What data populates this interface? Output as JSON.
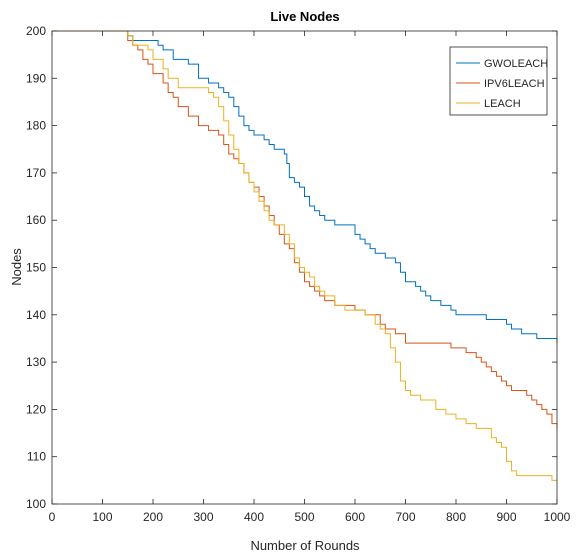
{
  "chart_data": {
    "type": "line",
    "title": "Live Nodes",
    "xlabel": "Number of Rounds",
    "ylabel": "Nodes",
    "xlim": [
      0,
      1000
    ],
    "ylim": [
      100,
      200
    ],
    "xticks": [
      0,
      100,
      200,
      300,
      400,
      500,
      600,
      700,
      800,
      900,
      1000
    ],
    "yticks": [
      100,
      110,
      120,
      130,
      140,
      150,
      160,
      170,
      180,
      190,
      200
    ],
    "grid": false,
    "legend_position": "top-right",
    "series": [
      {
        "name": "GWOLEACH",
        "color": "#0072BD",
        "x": [
          0,
          140,
          150,
          160,
          200,
          210,
          220,
          240,
          270,
          290,
          310,
          330,
          340,
          350,
          360,
          370,
          380,
          390,
          400,
          410,
          420,
          430,
          440,
          460,
          465,
          470,
          480,
          490,
          500,
          510,
          520,
          530,
          540,
          560,
          600,
          610,
          620,
          630,
          640,
          660,
          680,
          690,
          700,
          720,
          730,
          740,
          750,
          770,
          790,
          800,
          820,
          860,
          880,
          900,
          910,
          920,
          930,
          960,
          990,
          1000
        ],
        "y": [
          200,
          200,
          199,
          198,
          198,
          197,
          196,
          194,
          193,
          190,
          189,
          188,
          187,
          186,
          184,
          182,
          180,
          179,
          178,
          178,
          177,
          176,
          175,
          174,
          172,
          169,
          168,
          167,
          165,
          163,
          162,
          161,
          160,
          159,
          157,
          156,
          155,
          154,
          153,
          152,
          151,
          149,
          147,
          146,
          145,
          144,
          143,
          142,
          141,
          140,
          140,
          139,
          139,
          138,
          137,
          137,
          136,
          135,
          135,
          134
        ]
      },
      {
        "name": "IPV6LEACH",
        "color": "#D95319",
        "x": [
          0,
          140,
          150,
          160,
          170,
          180,
          190,
          200,
          220,
          230,
          240,
          250,
          270,
          290,
          310,
          330,
          340,
          350,
          360,
          370,
          380,
          390,
          400,
          410,
          420,
          430,
          440,
          450,
          460,
          470,
          480,
          490,
          500,
          510,
          520,
          530,
          540,
          560,
          600,
          620,
          650,
          660,
          680,
          700,
          740,
          790,
          820,
          830,
          840,
          850,
          860,
          870,
          880,
          890,
          900,
          910,
          920,
          940,
          950,
          960,
          970,
          980,
          990,
          1000
        ],
        "y": [
          200,
          200,
          198,
          197,
          196,
          194,
          193,
          191,
          189,
          187,
          186,
          184,
          182,
          180,
          179,
          178,
          176,
          174,
          173,
          172,
          170,
          168,
          167,
          165,
          163,
          161,
          159,
          157,
          155,
          154,
          151,
          149,
          147,
          146,
          145,
          144,
          143,
          142,
          141,
          140,
          138,
          137,
          136,
          134,
          134,
          133,
          132,
          132,
          131,
          130,
          129,
          128,
          127,
          126,
          125,
          124,
          124,
          123,
          122,
          121,
          120,
          119,
          117,
          116
        ]
      },
      {
        "name": "LEACH",
        "color": "#EDB120",
        "x": [
          0,
          140,
          150,
          160,
          190,
          200,
          220,
          230,
          250,
          290,
          310,
          320,
          330,
          340,
          350,
          360,
          370,
          380,
          390,
          400,
          410,
          420,
          430,
          440,
          460,
          470,
          480,
          490,
          500,
          510,
          520,
          530,
          540,
          560,
          580,
          620,
          640,
          650,
          660,
          670,
          680,
          690,
          700,
          710,
          730,
          760,
          780,
          800,
          820,
          840,
          870,
          880,
          890,
          900,
          910,
          920,
          940,
          990,
          1000
        ],
        "y": [
          200,
          200,
          199,
          197,
          196,
          194,
          192,
          190,
          188,
          188,
          187,
          186,
          184,
          181,
          178,
          175,
          172,
          170,
          168,
          166,
          164,
          162,
          160,
          159,
          157,
          155,
          152,
          150,
          149,
          148,
          146,
          145,
          144,
          142,
          141,
          140,
          138,
          137,
          136,
          133,
          130,
          126,
          124,
          123,
          122,
          120,
          119,
          118,
          117,
          116,
          114,
          113,
          112,
          109,
          107,
          106,
          106,
          105,
          105
        ]
      }
    ]
  }
}
